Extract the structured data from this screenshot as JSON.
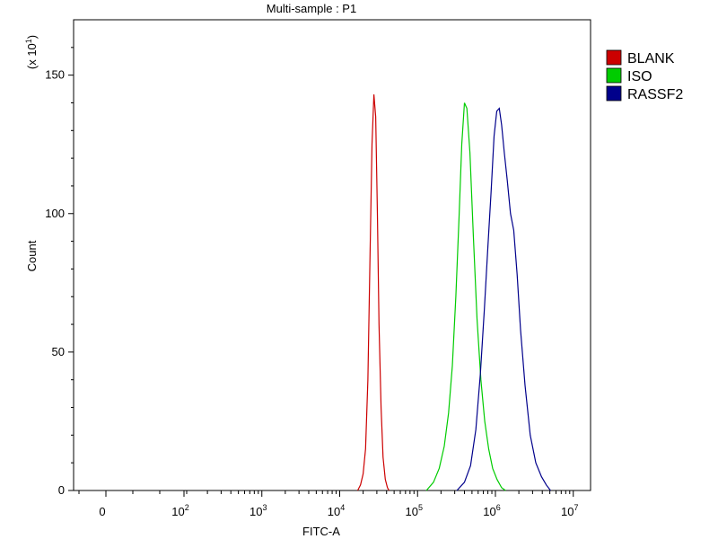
{
  "chart_data": {
    "type": "line",
    "title": "Multi-sample : P1",
    "xlabel": "FITC-A",
    "ylabel": "Count",
    "y_multiplier_label": "(x 10",
    "y_multiplier_exp": "1",
    "x_scale": "biexponential/log",
    "ylim": [
      0,
      170
    ],
    "yticks": [
      0,
      50,
      100,
      150
    ],
    "xticks": [
      {
        "value": 0,
        "base": "0",
        "exp": ""
      },
      {
        "value": 100,
        "base": "10",
        "exp": "2"
      },
      {
        "value": 1000,
        "base": "10",
        "exp": "3"
      },
      {
        "value": 10000,
        "base": "10",
        "exp": "4"
      },
      {
        "value": 100000,
        "base": "10",
        "exp": "5"
      },
      {
        "value": 1000000,
        "base": "10",
        "exp": "6"
      },
      {
        "value": 10000000,
        "base": "10",
        "exp": "7"
      }
    ],
    "legend_position": "top-right",
    "series": [
      {
        "name": "BLANK",
        "color": "#cc0000",
        "points": [
          [
            17000,
            0
          ],
          [
            18500,
            2
          ],
          [
            20000,
            6
          ],
          [
            21500,
            15
          ],
          [
            23000,
            40
          ],
          [
            24500,
            85
          ],
          [
            26000,
            125
          ],
          [
            27500,
            143
          ],
          [
            29000,
            135
          ],
          [
            30500,
            100
          ],
          [
            32000,
            60
          ],
          [
            34000,
            30
          ],
          [
            36000,
            12
          ],
          [
            38500,
            4
          ],
          [
            41000,
            1
          ],
          [
            43000,
            0
          ]
        ]
      },
      {
        "name": "ISO",
        "color": "#00cc00",
        "points": [
          [
            130000,
            0
          ],
          [
            160000,
            3
          ],
          [
            190000,
            8
          ],
          [
            220000,
            16
          ],
          [
            250000,
            28
          ],
          [
            280000,
            45
          ],
          [
            310000,
            70
          ],
          [
            340000,
            98
          ],
          [
            370000,
            125
          ],
          [
            400000,
            140
          ],
          [
            430000,
            138
          ],
          [
            470000,
            122
          ],
          [
            520000,
            92
          ],
          [
            580000,
            62
          ],
          [
            650000,
            40
          ],
          [
            730000,
            25
          ],
          [
            820000,
            15
          ],
          [
            920000,
            8
          ],
          [
            1050000,
            4
          ],
          [
            1200000,
            1
          ],
          [
            1350000,
            0
          ]
        ]
      },
      {
        "name": "RASSF2",
        "color": "#00008b",
        "points": [
          [
            320000,
            0
          ],
          [
            400000,
            3
          ],
          [
            480000,
            9
          ],
          [
            560000,
            22
          ],
          [
            640000,
            42
          ],
          [
            720000,
            65
          ],
          [
            800000,
            88
          ],
          [
            880000,
            108
          ],
          [
            960000,
            128
          ],
          [
            1040000,
            137
          ],
          [
            1120000,
            138
          ],
          [
            1200000,
            132
          ],
          [
            1300000,
            122
          ],
          [
            1420000,
            112
          ],
          [
            1560000,
            100
          ],
          [
            1720000,
            94
          ],
          [
            1900000,
            78
          ],
          [
            2100000,
            58
          ],
          [
            2400000,
            38
          ],
          [
            2800000,
            20
          ],
          [
            3300000,
            10
          ],
          [
            3900000,
            5
          ],
          [
            4500000,
            2
          ],
          [
            5100000,
            0
          ]
        ]
      }
    ]
  }
}
